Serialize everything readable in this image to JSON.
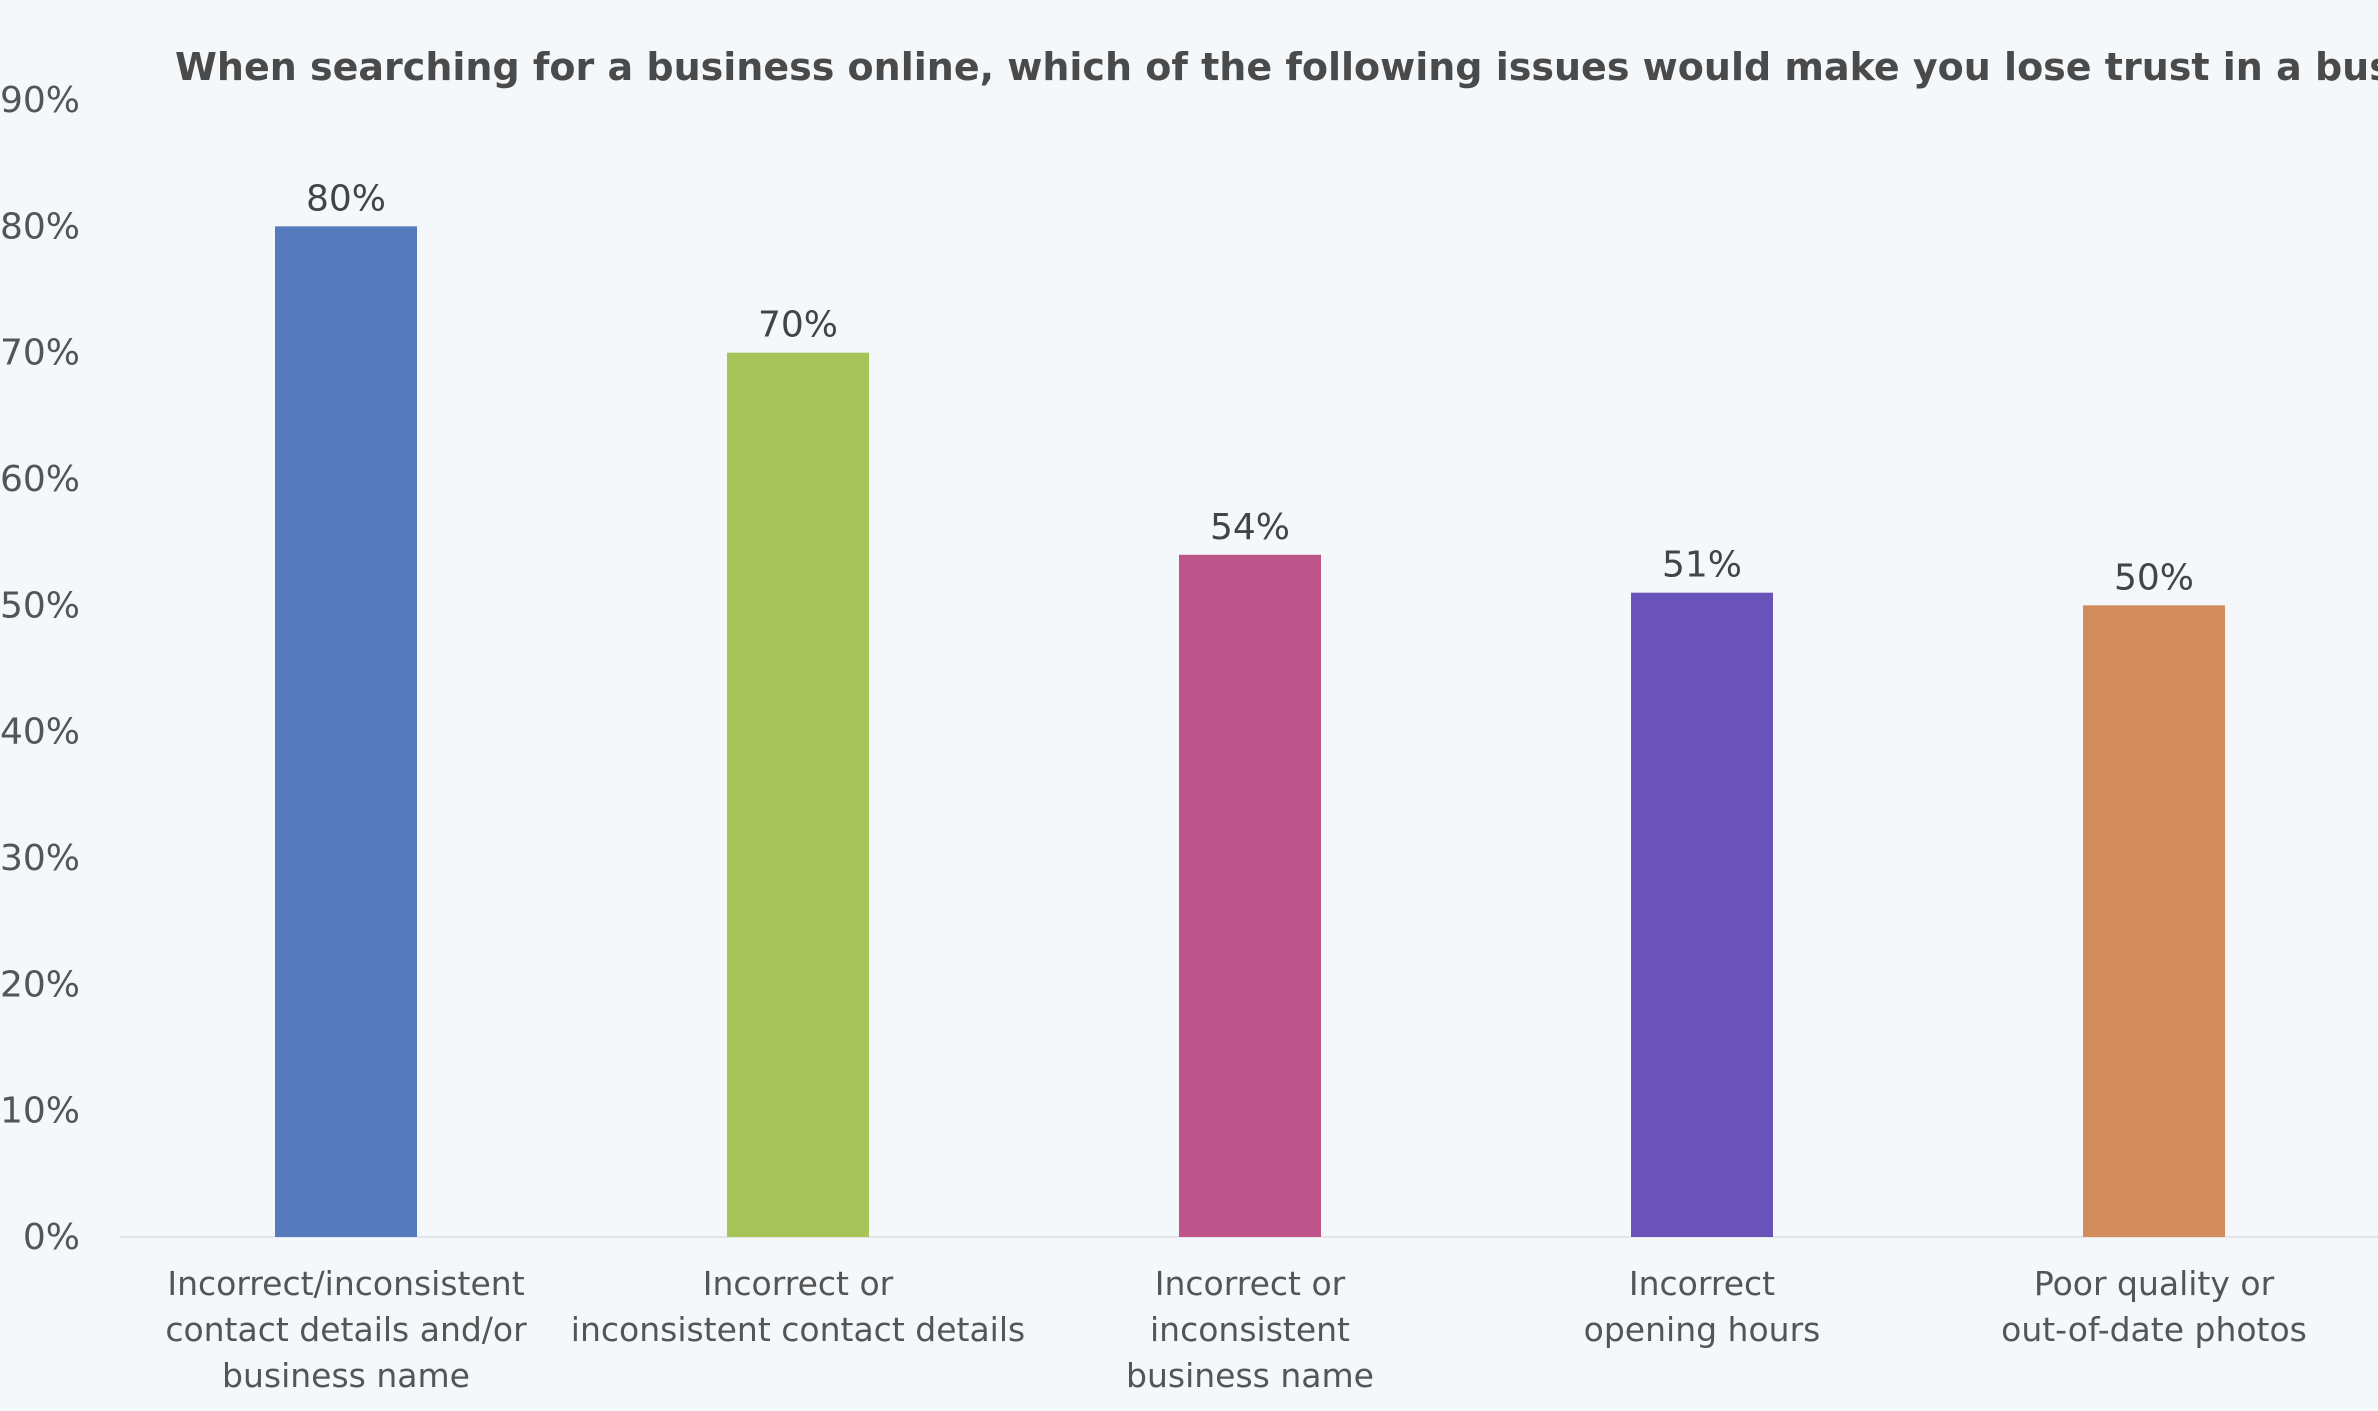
{
  "chart_data": {
    "type": "bar",
    "title": "When searching for a business online, which of the following issues would make you lose trust in a business?",
    "categories": [
      [
        "Incorrect/inconsistent",
        "contact details and/or",
        "business name"
      ],
      [
        "Incorrect or",
        "inconsistent contact details"
      ],
      [
        "Incorrect or",
        "inconsistent",
        "business name"
      ],
      [
        "Incorrect",
        "opening hours"
      ],
      [
        "Poor quality or",
        "out-of-date photos"
      ]
    ],
    "values": [
      80,
      70,
      54,
      51,
      50
    ],
    "data_labels": [
      "80%",
      "70%",
      "54%",
      "51%",
      "50%"
    ],
    "colors": [
      "#557bbd",
      "#a7c45a",
      "#bd548a",
      "#6a53b8",
      "#d28c5d"
    ],
    "ylim": [
      0,
      90
    ],
    "yticks": [
      0,
      10,
      20,
      30,
      40,
      50,
      60,
      70,
      80,
      90
    ],
    "ytick_labels": [
      "0%",
      "10%",
      "20%",
      "30%",
      "40%",
      "50%",
      "60%",
      "70%",
      "80%",
      "90%"
    ],
    "xlabel": "",
    "ylabel": "",
    "grid": false,
    "legend": "none"
  }
}
